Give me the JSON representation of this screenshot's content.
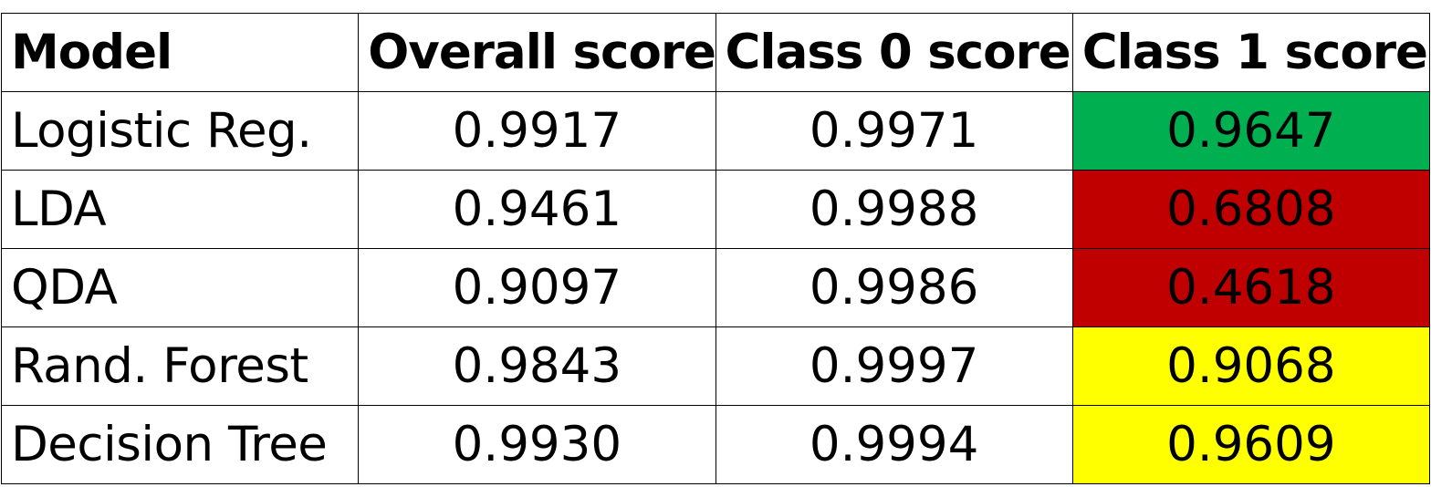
{
  "chart_data": {
    "type": "table",
    "columns": [
      "Model",
      "Overall score",
      "Class 0 score",
      "Class 1 score"
    ],
    "rows": [
      {
        "model": "Logistic Reg.",
        "overall": "0.9917",
        "class0": "0.9971",
        "class1": "0.9647",
        "class1_color": "#00b050"
      },
      {
        "model": "LDA",
        "overall": "0.9461",
        "class0": "0.9988",
        "class1": "0.6808",
        "class1_color": "#c00000"
      },
      {
        "model": "QDA",
        "overall": "0.9097",
        "class0": "0.9986",
        "class1": "0.4618",
        "class1_color": "#c00000"
      },
      {
        "model": "Rand. Forest",
        "overall": "0.9843",
        "class0": "0.9997",
        "class1": "0.9068",
        "class1_color": "#ffff00"
      },
      {
        "model": "Decision Tree",
        "overall": "0.9930",
        "class0": "0.9994",
        "class1": "0.9609",
        "class1_color": "#ffff00"
      }
    ]
  }
}
